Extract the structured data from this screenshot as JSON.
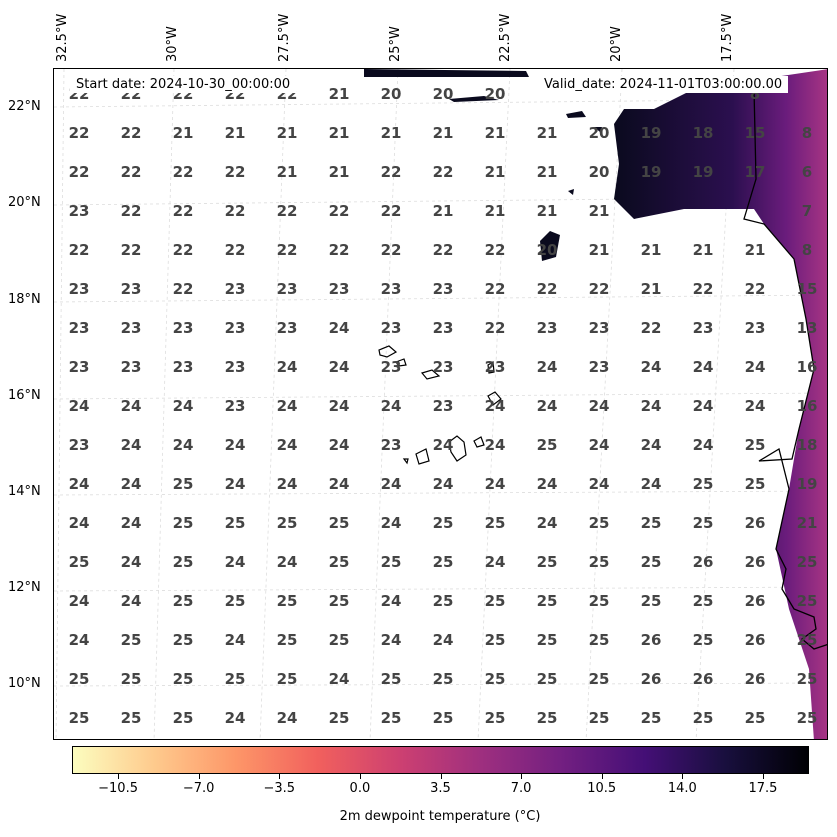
{
  "map": {
    "lon_ticks": [
      "32.5°W",
      "30°W",
      "27.5°W",
      "25°W",
      "22.5°W",
      "20°W",
      "17.5°W"
    ],
    "lat_ticks": [
      "22°N",
      "20°N",
      "18°N",
      "16°N",
      "14°N",
      "12°N",
      "10°N"
    ],
    "start_date": "Start date: 2024-10-30_00:00:00",
    "valid_date": "Valid_date: 2024-11-01T03:00:00.00",
    "grid_values": [
      [
        "22",
        "22",
        "22",
        "22",
        "22",
        "21",
        "20",
        "20",
        "20",
        "",
        "",
        "",
        "",
        "8"
      ],
      [
        "22",
        "22",
        "21",
        "21",
        "21",
        "21",
        "21",
        "21",
        "21",
        "21",
        "20",
        "19",
        "18",
        "15",
        "8"
      ],
      [
        "22",
        "22",
        "22",
        "22",
        "21",
        "21",
        "22",
        "22",
        "21",
        "21",
        "20",
        "19",
        "19",
        "17",
        "6"
      ],
      [
        "23",
        "22",
        "22",
        "22",
        "22",
        "22",
        "22",
        "21",
        "21",
        "21",
        "21",
        "",
        "",
        "",
        "7"
      ],
      [
        "22",
        "22",
        "22",
        "22",
        "22",
        "22",
        "22",
        "22",
        "22",
        "20",
        "21",
        "21",
        "21",
        "21",
        "8"
      ],
      [
        "23",
        "23",
        "22",
        "23",
        "23",
        "23",
        "23",
        "23",
        "22",
        "22",
        "22",
        "21",
        "22",
        "22",
        "15"
      ],
      [
        "23",
        "23",
        "23",
        "23",
        "23",
        "24",
        "23",
        "23",
        "22",
        "23",
        "23",
        "22",
        "23",
        "23",
        "13"
      ],
      [
        "23",
        "23",
        "23",
        "23",
        "24",
        "24",
        "23",
        "23",
        "23",
        "24",
        "23",
        "24",
        "24",
        "24",
        "16"
      ],
      [
        "24",
        "24",
        "24",
        "23",
        "24",
        "24",
        "24",
        "23",
        "24",
        "24",
        "24",
        "24",
        "24",
        "24",
        "16"
      ],
      [
        "23",
        "24",
        "24",
        "24",
        "24",
        "24",
        "23",
        "24",
        "24",
        "25",
        "24",
        "24",
        "24",
        "25",
        "18"
      ],
      [
        "24",
        "24",
        "25",
        "24",
        "24",
        "24",
        "24",
        "24",
        "24",
        "24",
        "24",
        "24",
        "25",
        "25",
        "19"
      ],
      [
        "24",
        "24",
        "25",
        "25",
        "25",
        "25",
        "24",
        "25",
        "25",
        "24",
        "25",
        "25",
        "25",
        "26",
        "21"
      ],
      [
        "25",
        "24",
        "25",
        "24",
        "24",
        "25",
        "25",
        "25",
        "24",
        "25",
        "25",
        "25",
        "26",
        "26",
        "25"
      ],
      [
        "24",
        "24",
        "25",
        "25",
        "25",
        "25",
        "24",
        "25",
        "25",
        "25",
        "25",
        "25",
        "25",
        "26",
        "25"
      ],
      [
        "24",
        "25",
        "25",
        "24",
        "25",
        "25",
        "24",
        "24",
        "25",
        "25",
        "25",
        "26",
        "25",
        "26",
        "25"
      ],
      [
        "25",
        "25",
        "25",
        "25",
        "25",
        "24",
        "25",
        "25",
        "25",
        "25",
        "25",
        "26",
        "26",
        "26",
        "25"
      ],
      [
        "25",
        "25",
        "25",
        "24",
        "24",
        "25",
        "25",
        "25",
        "25",
        "25",
        "25",
        "25",
        "25",
        "25",
        "25"
      ]
    ]
  },
  "colorbar": {
    "ticks": [
      "−10.5",
      "−7.0",
      "−3.5",
      "0.0",
      "3.5",
      "7.0",
      "10.5",
      "14.0",
      "17.5"
    ],
    "label": "2m dewpoint temperature (°C)",
    "colors": [
      "#fcfdbf",
      "#feca8d",
      "#fd9668",
      "#f1605d",
      "#cd4071",
      "#9e2f7f",
      "#721f81",
      "#440f76",
      "#180f3d",
      "#000004"
    ]
  }
}
